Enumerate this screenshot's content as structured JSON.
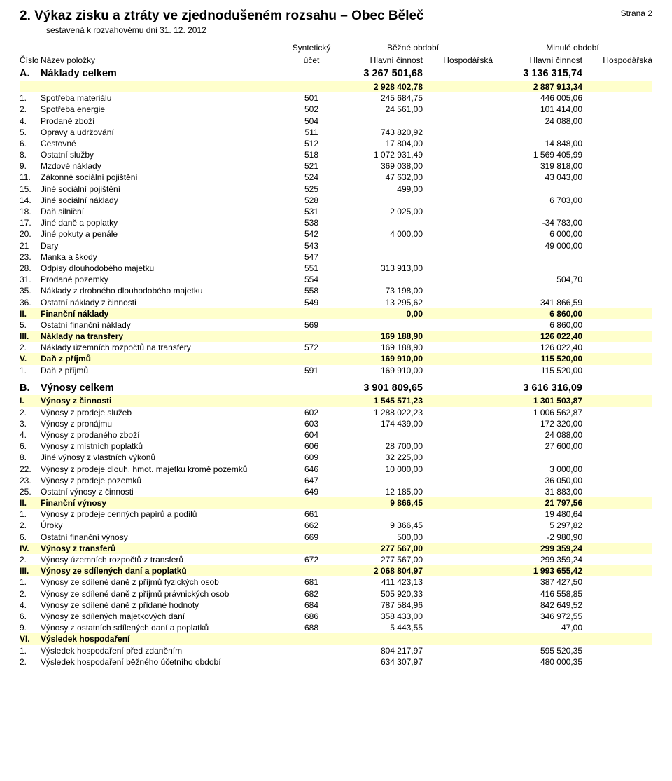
{
  "header": {
    "title": "2. Výkaz zisku a ztráty ve zjednodušeném rozsahu – Obec Běleč",
    "page": "Strana 2",
    "subtitle": "sestavená k rozvahovému dni 31. 12. 2012"
  },
  "columns": {
    "synth": "Syntetický",
    "bezne": "Běžné období",
    "minule": "Minulé období",
    "cislo": "Číslo",
    "nazev": "Název položky",
    "ucet": "účet",
    "hc": "Hlavní činnost",
    "hosp": "Hospodářská"
  },
  "colors": {
    "highlight": "#ffffcc",
    "background": "#ffffff",
    "text": "#000000"
  },
  "sectionA": {
    "cislo": "A.",
    "nazev": "Náklady celkem",
    "hc1": "3 267 501,68",
    "hc2": "3 136 315,74",
    "sub": {
      "hc1": "2 928 402,78",
      "hc2": "2 887 913,34"
    },
    "rows": [
      {
        "c": "1.",
        "n": "Spotřeba materiálu",
        "u": "501",
        "v1": "245 684,75",
        "v2": "446 005,06"
      },
      {
        "c": "2.",
        "n": "Spotřeba energie",
        "u": "502",
        "v1": "24 561,00",
        "v2": "101 414,00"
      },
      {
        "c": "4.",
        "n": "Prodané zboží",
        "u": "504",
        "v1": "",
        "v2": "24 088,00"
      },
      {
        "c": "5.",
        "n": "Opravy a udržování",
        "u": "511",
        "v1": "743 820,92",
        "v2": ""
      },
      {
        "c": "6.",
        "n": "Cestovné",
        "u": "512",
        "v1": "17 804,00",
        "v2": "14 848,00"
      },
      {
        "c": "8.",
        "n": "Ostatní služby",
        "u": "518",
        "v1": "1 072 931,49",
        "v2": "1 569 405,99"
      },
      {
        "c": "9.",
        "n": "Mzdové náklady",
        "u": "521",
        "v1": "369 038,00",
        "v2": "319 818,00"
      },
      {
        "c": "11.",
        "n": "Zákonné sociální pojištění",
        "u": "524",
        "v1": "47 632,00",
        "v2": "43 043,00"
      },
      {
        "c": "15.",
        "n": "Jiné sociální pojištění",
        "u": "525",
        "v1": "499,00",
        "v2": ""
      },
      {
        "c": "14.",
        "n": "Jiné sociální náklady",
        "u": "528",
        "v1": "",
        "v2": "6 703,00"
      },
      {
        "c": "18.",
        "n": "Daň silniční",
        "u": "531",
        "v1": "2 025,00",
        "v2": ""
      },
      {
        "c": "17.",
        "n": "Jiné daně a poplatky",
        "u": "538",
        "v1": "",
        "v2": "-34 783,00"
      },
      {
        "c": "20.",
        "n": "Jiné pokuty a penále",
        "u": "542",
        "v1": "4 000,00",
        "v2": "6 000,00"
      },
      {
        "c": "21",
        "n": "Dary",
        "u": "543",
        "v1": "",
        "v2": "49 000,00"
      },
      {
        "c": "23.",
        "n": "Manka a škody",
        "u": "547",
        "v1": "",
        "v2": ""
      },
      {
        "c": "28.",
        "n": "Odpisy dlouhodobého majetku",
        "u": "551",
        "v1": "313 913,00",
        "v2": ""
      },
      {
        "c": "31.",
        "n": "Prodané pozemky",
        "u": "554",
        "v1": "",
        "v2": "504,70"
      },
      {
        "c": "35.",
        "n": "Náklady z drobného dlouhodobého majetku",
        "u": "558",
        "v1": "73 198,00",
        "v2": ""
      },
      {
        "c": "36.",
        "n": "Ostatní náklady z činnosti",
        "u": "549",
        "v1": "13 295,62",
        "v2": "341 866,59"
      }
    ],
    "II": {
      "c": "II.",
      "n": "Finanční náklady",
      "v1": "0,00",
      "v2": "6 860,00"
    },
    "r5b": {
      "c": "5.",
      "n": "Ostatní finanční náklady",
      "u": "569",
      "v1": "",
      "v2": "6 860,00"
    },
    "III": {
      "c": "III.",
      "n": "Náklady na transfery",
      "v1": "169 188,90",
      "v2": "126 022,40"
    },
    "r2b": {
      "c": "2.",
      "n": "Náklady územních rozpočtů na transfery",
      "u": "572",
      "v1": "169 188,90",
      "v2": "126 022,40"
    },
    "V": {
      "c": "V.",
      "n": "Daň z příjmů",
      "v1": "169 910,00",
      "v2": "115 520,00"
    },
    "r1b": {
      "c": "1.",
      "n": "Daň z příjmů",
      "u": "591",
      "v1": "169 910,00",
      "v2": "115 520,00"
    }
  },
  "sectionB": {
    "cislo": "B.",
    "nazev": "Výnosy celkem",
    "hc1": "3 901 809,65",
    "hc2": "3 616 316,09",
    "I": {
      "c": "I.",
      "n": "Výnosy z činnosti",
      "v1": "1 545 571,23",
      "v2": "1 301 503,87"
    },
    "rowsI": [
      {
        "c": "2.",
        "n": "Výnosy z prodeje služeb",
        "u": "602",
        "v1": "1 288 022,23",
        "v2": "1 006 562,87"
      },
      {
        "c": "3.",
        "n": "Výnosy z pronájmu",
        "u": "603",
        "v1": "174 439,00",
        "v2": "172 320,00"
      },
      {
        "c": "4.",
        "n": "Výnosy z prodaného zboží",
        "u": "604",
        "v1": "",
        "v2": "24 088,00"
      },
      {
        "c": "6.",
        "n": "Výnosy z místních poplatků",
        "u": "606",
        "v1": "28 700,00",
        "v2": "27 600,00"
      },
      {
        "c": "8.",
        "n": "Jiné výnosy z vlastních výkonů",
        "u": "609",
        "v1": "32 225,00",
        "v2": ""
      },
      {
        "c": "22.",
        "n": "Výnosy z prodeje dlouh. hmot. majetku kromě pozemků",
        "u": "646",
        "v1": "10 000,00",
        "v2": "3 000,00"
      },
      {
        "c": "23.",
        "n": "Výnosy z prodeje pozemků",
        "u": "647",
        "v1": "",
        "v2": "36 050,00"
      },
      {
        "c": "25.",
        "n": "Ostatní výnosy z činnosti",
        "u": "649",
        "v1": "12 185,00",
        "v2": "31 883,00"
      }
    ],
    "II": {
      "c": "II.",
      "n": "Finanční výnosy",
      "v1": "9 866,45",
      "v2": "21 797,56"
    },
    "rowsII": [
      {
        "c": "1.",
        "n": "Výnosy z prodeje cenných papírů a podílů",
        "u": "661",
        "v1": "",
        "v2": "19 480,64"
      },
      {
        "c": "2.",
        "n": "Úroky",
        "u": "662",
        "v1": "9 366,45",
        "v2": "5 297,82"
      },
      {
        "c": "6.",
        "n": "Ostatní finanční výnosy",
        "u": "669",
        "v1": "500,00",
        "v2": "-2 980,90"
      }
    ],
    "IV": {
      "c": "IV.",
      "n": "Výnosy z transferů",
      "v1": "277 567,00",
      "v2": "299 359,24"
    },
    "rIV": {
      "c": "2.",
      "n": "Výnosy územních rozpočtů z transferů",
      "u": "672",
      "v1": "277 567,00",
      "v2": "299 359,24"
    },
    "III": {
      "c": "III.",
      "n": "Výnosy ze sdílených daní a poplatků",
      "v1": "2 068 804,97",
      "v2": "1 993 655,42"
    },
    "rowsIII": [
      {
        "c": "1.",
        "n": "Výnosy ze sdílené daně z příjmů fyzických osob",
        "u": "681",
        "v1": "411 423,13",
        "v2": "387 427,50"
      },
      {
        "c": "2.",
        "n": "Výnosy ze sdílené daně z příjmů právnických osob",
        "u": "682",
        "v1": "505 920,33",
        "v2": "416 558,85"
      },
      {
        "c": "4.",
        "n": "Výnosy ze sdílené daně z přidané hodnoty",
        "u": "684",
        "v1": "787 584,96",
        "v2": "842 649,52"
      },
      {
        "c": "6.",
        "n": "Výnosy ze sdílených majetkových daní",
        "u": "686",
        "v1": "358 433,00",
        "v2": "346 972,55"
      },
      {
        "c": "9.",
        "n": "Výnosy z ostatních sdílených daní a poplatků",
        "u": "688",
        "v1": "5 443,55",
        "v2": "47,00"
      }
    ],
    "VI": {
      "c": "VI.",
      "n": "Výsledek hospodaření"
    },
    "rowsVI": [
      {
        "c": "1.",
        "n": "Výsledek hospodaření před zdaněním",
        "u": "",
        "v1": "804 217,97",
        "v2": "595 520,35"
      },
      {
        "c": "2.",
        "n": "Výsledek hospodaření běžného účetního období",
        "u": "",
        "v1": "634 307,97",
        "v2": "480 000,35"
      }
    ]
  }
}
